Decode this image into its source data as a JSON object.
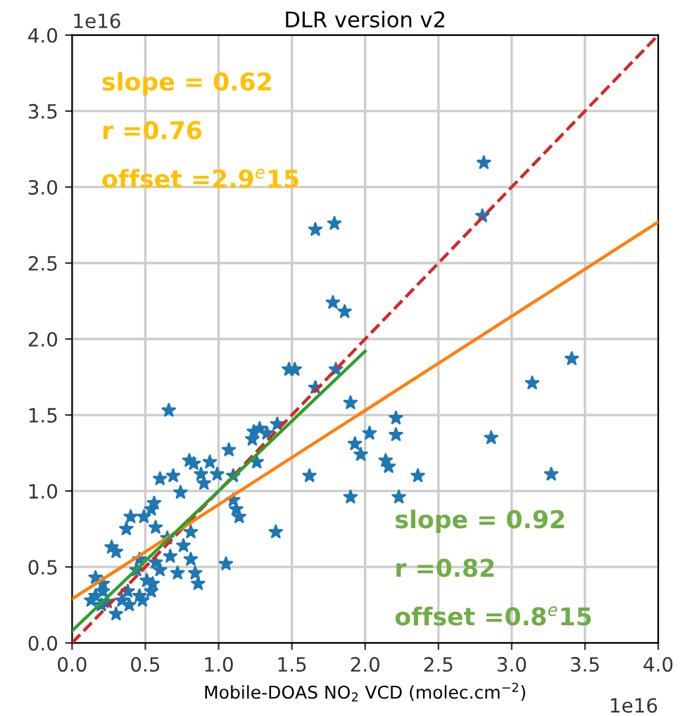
{
  "chart_data": {
    "type": "scatter",
    "title": "DLR version v2",
    "xlabel": "Mobile-DOAS NO$_{2}$ VCD (molec.cm$^{−2}$)",
    "xlim": [
      0,
      4
    ],
    "ylim": [
      0,
      4
    ],
    "xticks": [
      {
        "value": 0,
        "label": "0.0"
      },
      0.5,
      {
        "value": 1,
        "label": "1.0"
      },
      1.5,
      {
        "value": 2,
        "label": "2.0"
      },
      2.5,
      {
        "value": 3,
        "label": "3.0"
      },
      3.5,
      {
        "value": 4,
        "label": "4.0"
      }
    ],
    "yticks": [
      {
        "value": 0,
        "label": "0.0"
      },
      0.5,
      {
        "value": 1,
        "label": "1.0"
      },
      1.5,
      {
        "value": 2,
        "label": "2.0"
      },
      2.5,
      {
        "value": 3,
        "label": "3.0"
      },
      3.5,
      {
        "value": 4,
        "label": "4.0"
      }
    ],
    "grid": true,
    "series": [
      {
        "marker": "star",
        "color": "#1f77b4",
        "x": [
          0.66,
          1.24,
          1.28,
          1.23,
          1.33,
          1.4,
          1.07,
          1.26,
          0.8,
          0.83,
          0.94,
          0.88,
          0.99,
          0.9,
          1.1,
          0.69,
          0.6,
          0.74,
          1.62,
          1.9,
          1.9,
          1.1,
          1.12,
          1.14,
          0.56,
          0.54,
          0.49,
          0.4,
          0.37,
          0.57,
          0.81,
          1.39,
          0.27,
          0.3,
          0.76,
          0.65,
          0.81,
          1.05,
          0.57,
          0.67,
          0.46,
          0.44,
          0.6,
          0.72,
          0.84,
          0.86,
          0.16,
          0.55,
          0.51,
          0.54,
          0.46,
          0.38,
          0.34,
          0.21,
          0.16,
          0.2,
          0.24,
          0.3,
          0.39,
          0.48,
          0.21,
          0.13,
          2.81,
          2.8,
          1.66,
          1.79,
          1.78,
          1.86,
          1.48,
          1.52,
          1.8,
          1.66,
          3.41,
          3.14,
          2.86,
          3.27,
          2.21,
          2.21,
          2.03,
          1.93,
          1.97,
          2.14,
          2.16,
          2.36,
          2.23
        ],
        "values": [
          1.53,
          1.39,
          1.41,
          1.34,
          1.38,
          1.44,
          1.27,
          1.19,
          1.2,
          1.18,
          1.19,
          1.11,
          1.11,
          1.05,
          1.1,
          1.1,
          1.08,
          0.99,
          1.1,
          0.96,
          1.58,
          0.94,
          0.88,
          0.83,
          0.92,
          0.88,
          0.83,
          0.83,
          0.75,
          0.76,
          0.73,
          0.73,
          0.63,
          0.6,
          0.64,
          0.69,
          0.55,
          0.52,
          0.53,
          0.57,
          0.55,
          0.48,
          0.48,
          0.46,
          0.46,
          0.39,
          0.43,
          0.39,
          0.41,
          0.34,
          0.31,
          0.34,
          0.28,
          0.34,
          0.31,
          0.25,
          0.27,
          0.19,
          0.25,
          0.28,
          0.39,
          0.28,
          3.16,
          2.81,
          2.72,
          2.76,
          2.24,
          2.18,
          1.8,
          1.8,
          1.8,
          1.68,
          1.87,
          1.71,
          1.35,
          1.11,
          1.48,
          1.37,
          1.38,
          1.31,
          1.24,
          1.2,
          1.16,
          1.1,
          0.96
        ]
      },
      {
        "type": "line",
        "marker": "none",
        "color": "#d62728",
        "line_style": "dashed",
        "x": [
          0,
          4
        ],
        "values": [
          0,
          4
        ]
      },
      {
        "type": "line",
        "marker": "none",
        "color": "#ff7f0e",
        "line_style": "solid",
        "x": [
          0,
          4
        ],
        "values": [
          0.29,
          2.77
        ]
      },
      {
        "type": "line",
        "marker": "none",
        "color": "#2ca02c",
        "line_style": "solid",
        "x": [
          0,
          2
        ],
        "values": [
          0.08,
          1.92
        ]
      }
    ],
    "annotations": [
      "slope = 0.62",
      "r =0.76",
      "offset =2.9$^{e}$15",
      "slope = 0.92",
      "r =0.82",
      "offset =0.8$^{e}$15",
      "1e16",
      "1e16"
    ]
  }
}
